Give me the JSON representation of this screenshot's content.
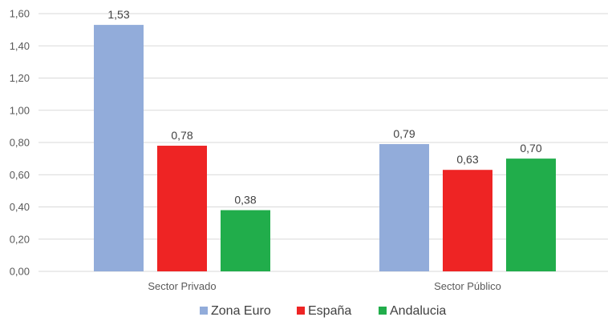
{
  "chart_data": {
    "type": "bar",
    "categories": [
      "Sector Privado",
      "Sector Público"
    ],
    "series": [
      {
        "name": "Zona Euro",
        "values": [
          1.53,
          0.79
        ],
        "labels": [
          "1,53",
          "0,79"
        ],
        "color": "#92ACDA"
      },
      {
        "name": "España",
        "values": [
          0.78,
          0.63
        ],
        "labels": [
          "0,78",
          "0,63"
        ],
        "color": "#EE2424"
      },
      {
        "name": "Andalucia",
        "values": [
          0.38,
          0.7
        ],
        "labels": [
          "0,38",
          "0,70"
        ],
        "color": "#21AD4B"
      }
    ],
    "ylim": [
      0,
      1.6
    ],
    "yticks": [
      0,
      0.2,
      0.4,
      0.6,
      0.8,
      1.0,
      1.2,
      1.4,
      1.6
    ],
    "ytick_labels": [
      "0,00",
      "0,20",
      "0,40",
      "0,60",
      "0,80",
      "1,00",
      "1,20",
      "1,40",
      "1,60"
    ],
    "grid": true,
    "legend_position": "bottom"
  }
}
